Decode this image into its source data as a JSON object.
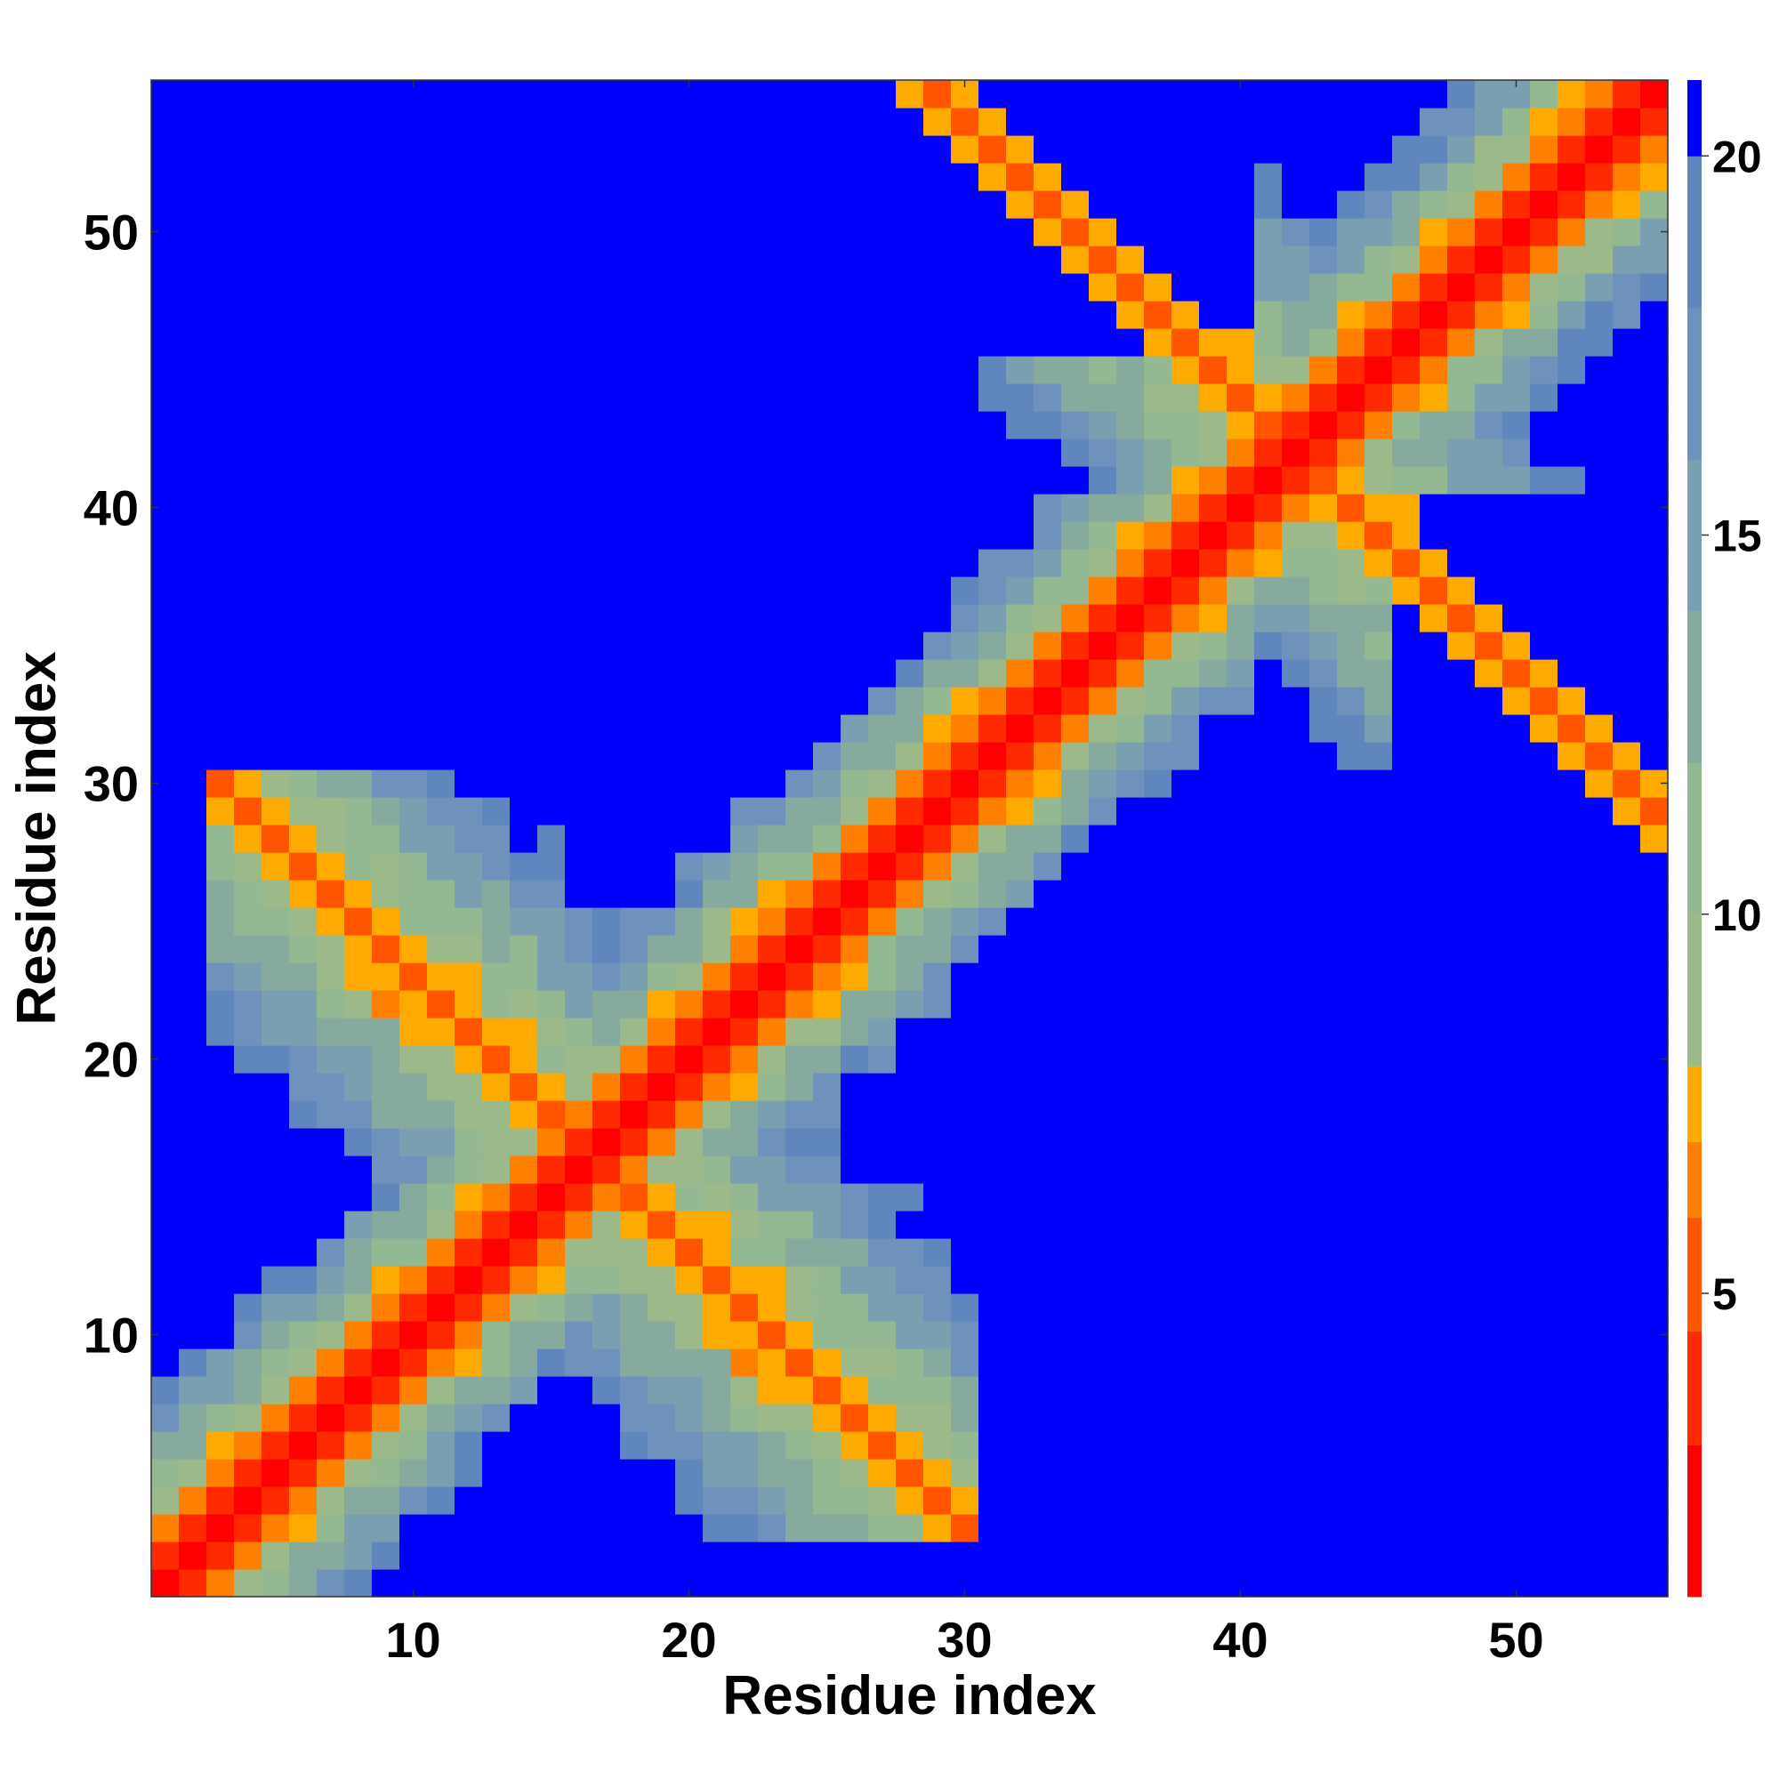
{
  "chart_data": {
    "type": "heatmap",
    "title": "",
    "xlabel": "Residue index",
    "ylabel": "Residue index",
    "n_residues": 55,
    "x_range": [
      0.5,
      55.5
    ],
    "y_range": [
      0.5,
      55.5
    ],
    "x_ticks": [
      10,
      20,
      30,
      40,
      50
    ],
    "y_ticks": [
      10,
      20,
      30,
      40,
      50
    ],
    "x_tick_labels": [
      "10",
      "20",
      "30",
      "40",
      "50"
    ],
    "y_tick_labels": [
      "10",
      "20",
      "30",
      "40",
      "50"
    ],
    "colorbar": {
      "range": [
        1,
        21
      ],
      "ticks": [
        5,
        10,
        15,
        20
      ],
      "tick_labels": [
        "5",
        "10",
        "15",
        "20"
      ],
      "bins": [
        {
          "from": 1,
          "to": 3,
          "color": "#ff0000"
        },
        {
          "from": 3,
          "to": 4.5,
          "color": "#ff2a00"
        },
        {
          "from": 4.5,
          "to": 6,
          "color": "#ff5500"
        },
        {
          "from": 6,
          "to": 7,
          "color": "#ff8000"
        },
        {
          "from": 7,
          "to": 8,
          "color": "#ffaa00"
        },
        {
          "from": 8,
          "to": 10,
          "color": "#9cb98a"
        },
        {
          "from": 10,
          "to": 12,
          "color": "#93b892"
        },
        {
          "from": 12,
          "to": 14,
          "color": "#87aa9f"
        },
        {
          "from": 14,
          "to": 16,
          "color": "#7a9fb0"
        },
        {
          "from": 16,
          "to": 18,
          "color": "#6f92bc"
        },
        {
          "from": 18,
          "to": 20,
          "color": "#5f87bd"
        },
        {
          "from": 20,
          "to": 21,
          "color": "#0000ff"
        }
      ]
    },
    "blue_threshold": 20,
    "description_values": "Symmetric residue–residue distance map; value ≈ 1 on the diagonal rising with |i−j|, with antiparallel contacts near i+j≈33 (residues 3–30) and i+j≈84 (residues 28–55).",
    "contact_bands": [
      {
        "type": "diagonal",
        "value_at_zero_sep": 1
      },
      {
        "type": "anti",
        "sum": 33,
        "i_range": [
          3,
          30
        ]
      },
      {
        "type": "anti",
        "sum": 84,
        "i_range": [
          28,
          55
        ]
      }
    ],
    "far_regions": [
      {
        "x": [
          20,
          29
        ],
        "y": [
          30,
          48
        ]
      },
      {
        "x": [
          31,
          49
        ],
        "y": [
          14,
          25
        ]
      },
      {
        "x": [
          1,
          10
        ],
        "y": [
          38,
          55
        ]
      },
      {
        "x": [
          31,
          55
        ],
        "y": [
          1,
          12
        ]
      },
      {
        "x": [
          9,
          35
        ],
        "y": [
          52,
          55
        ]
      },
      {
        "x": [
          46,
          55
        ],
        "y": [
          27,
          40
        ]
      }
    ],
    "grid": false,
    "legend": "none"
  }
}
